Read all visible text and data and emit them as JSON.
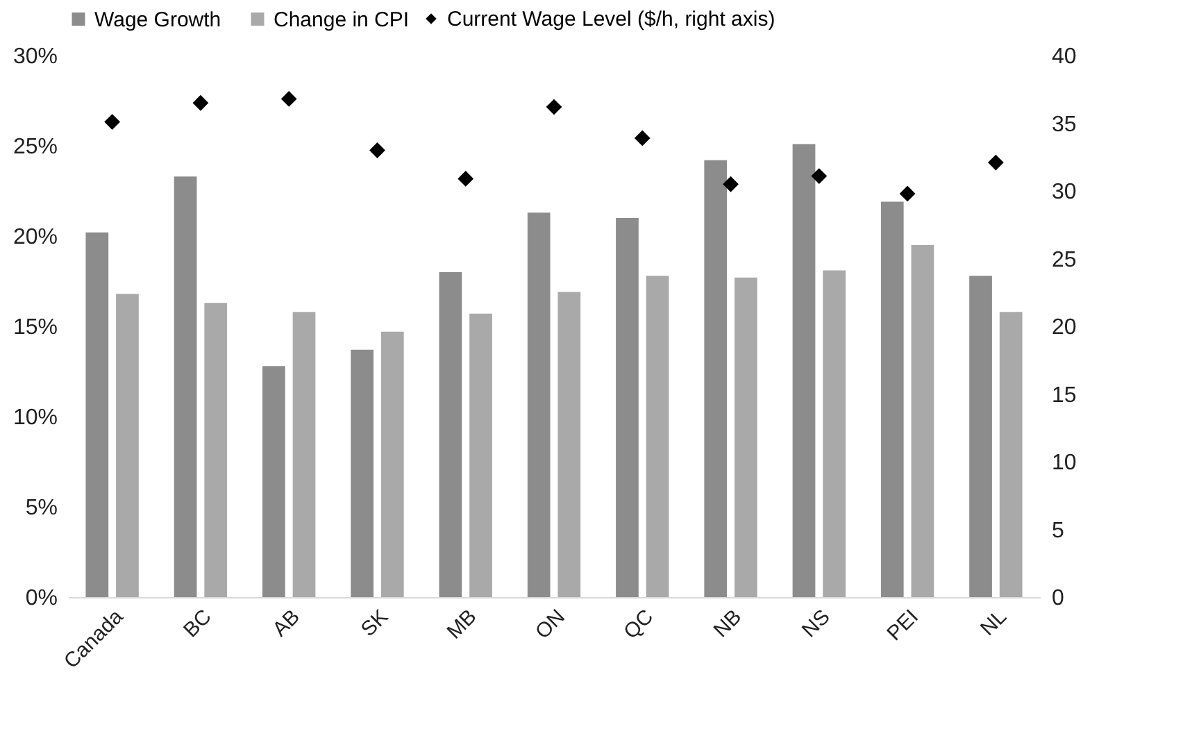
{
  "chart_data": {
    "type": "bar",
    "categories": [
      "Canada",
      "BC",
      "AB",
      "SK",
      "MB",
      "ON",
      "QC",
      "NB",
      "NS",
      "PEI",
      "NL"
    ],
    "series": [
      {
        "name": "Wage Growth",
        "color": "#8c8c8c",
        "values": [
          20.2,
          23.3,
          12.8,
          13.7,
          18.0,
          21.3,
          21.0,
          24.2,
          25.1,
          21.9,
          17.8
        ]
      },
      {
        "name": "Change in CPI",
        "color": "#a9a9a9",
        "values": [
          16.8,
          16.3,
          15.8,
          14.7,
          15.7,
          16.9,
          17.8,
          17.7,
          18.1,
          19.5,
          15.8
        ]
      },
      {
        "name": "Current Wage Level ($/h, right axis)",
        "type": "scatter",
        "axis": "y2",
        "marker": "diamond",
        "color": "#000000",
        "values": [
          35.1,
          36.5,
          36.8,
          33.0,
          30.9,
          36.2,
          33.9,
          30.5,
          31.1,
          29.8,
          32.1
        ]
      }
    ],
    "ylim": [
      0,
      30
    ],
    "yticks": [
      {
        "value": 0,
        "label": "0%"
      },
      {
        "value": 5,
        "label": "5%"
      },
      {
        "value": 10,
        "label": "10%"
      },
      {
        "value": 15,
        "label": "15%"
      },
      {
        "value": 20,
        "label": "20%"
      },
      {
        "value": 25,
        "label": "25%"
      },
      {
        "value": 30,
        "label": "30%"
      }
    ],
    "y2lim": [
      0,
      40
    ],
    "y2ticks": [
      0,
      5,
      10,
      15,
      20,
      25,
      30,
      35,
      40
    ],
    "legend": "top",
    "grid": false
  }
}
